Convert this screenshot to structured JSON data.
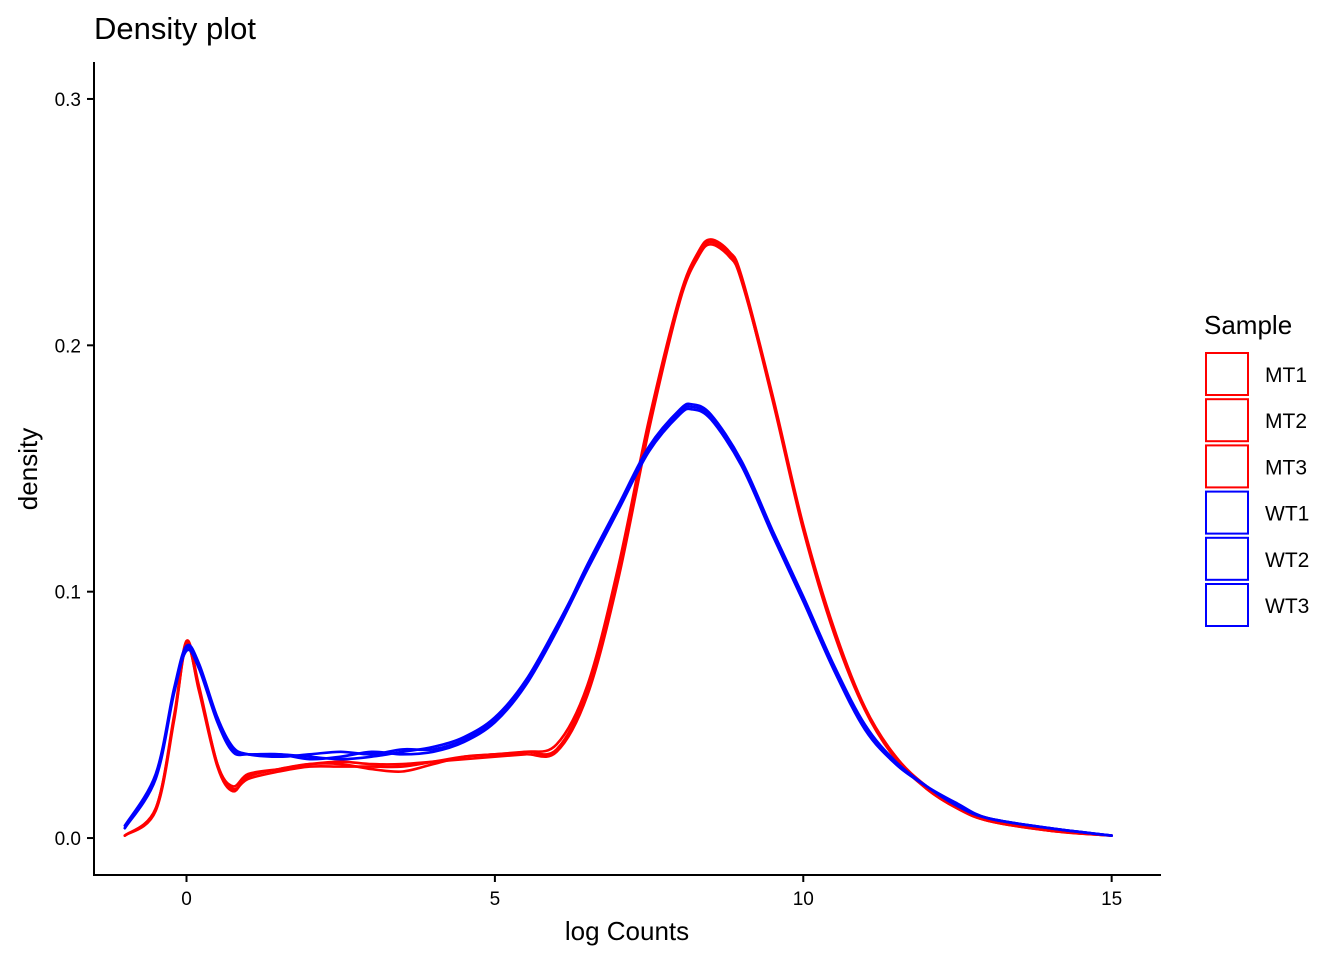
{
  "chart_data": {
    "type": "line",
    "title": "Density plot",
    "xlabel": "log Counts",
    "ylabel": "density",
    "xlim": [
      -1.5,
      15.8
    ],
    "ylim": [
      -0.015,
      0.315
    ],
    "x_ticks": [
      0,
      5,
      10,
      15
    ],
    "x_tick_labels": [
      "0",
      "5",
      "10",
      "15"
    ],
    "y_ticks": [
      0.0,
      0.1,
      0.2,
      0.3
    ],
    "y_tick_labels": [
      "0.0",
      "0.1",
      "0.2",
      "0.3"
    ],
    "grid": false,
    "legend_title": "Sample",
    "legend_position": "right",
    "series": [
      {
        "name": "MT1",
        "color": "#ff0000",
        "x": [
          -1.0,
          -0.5,
          -0.2,
          0.0,
          0.2,
          0.5,
          0.75,
          1.0,
          1.5,
          2.0,
          2.5,
          3.0,
          3.5,
          4.0,
          4.5,
          5.0,
          5.5,
          6.0,
          6.5,
          7.0,
          7.5,
          8.0,
          8.3,
          8.5,
          8.8,
          9.0,
          9.5,
          10.0,
          10.5,
          11.0,
          11.5,
          12.0,
          12.5,
          13.0,
          14.0,
          15.0
        ],
        "y": [
          0.001,
          0.012,
          0.05,
          0.08,
          0.062,
          0.03,
          0.02,
          0.024,
          0.027,
          0.029,
          0.029,
          0.029,
          0.029,
          0.031,
          0.033,
          0.034,
          0.035,
          0.038,
          0.062,
          0.11,
          0.17,
          0.22,
          0.238,
          0.243,
          0.238,
          0.228,
          0.18,
          0.127,
          0.085,
          0.053,
          0.033,
          0.021,
          0.013,
          0.008,
          0.003,
          0.001
        ]
      },
      {
        "name": "MT2",
        "color": "#ff0000",
        "x": [
          -1.0,
          -0.5,
          -0.2,
          0.0,
          0.2,
          0.5,
          0.75,
          1.0,
          1.5,
          2.0,
          2.5,
          3.0,
          3.5,
          4.0,
          4.5,
          5.0,
          5.5,
          6.0,
          6.5,
          7.0,
          7.5,
          8.0,
          8.3,
          8.5,
          8.8,
          9.0,
          9.5,
          10.0,
          10.5,
          11.0,
          11.5,
          12.0,
          12.5,
          13.0,
          14.0,
          15.0
        ],
        "y": [
          0.001,
          0.011,
          0.048,
          0.079,
          0.06,
          0.029,
          0.019,
          0.025,
          0.028,
          0.03,
          0.03,
          0.028,
          0.027,
          0.03,
          0.033,
          0.034,
          0.035,
          0.036,
          0.06,
          0.107,
          0.168,
          0.219,
          0.237,
          0.242,
          0.237,
          0.227,
          0.178,
          0.125,
          0.083,
          0.052,
          0.033,
          0.02,
          0.012,
          0.007,
          0.003,
          0.001
        ]
      },
      {
        "name": "MT3",
        "color": "#ff0000",
        "x": [
          -1.0,
          -0.5,
          -0.2,
          0.0,
          0.2,
          0.5,
          0.75,
          1.0,
          1.5,
          2.0,
          2.5,
          3.0,
          3.5,
          4.0,
          4.5,
          5.0,
          5.5,
          6.0,
          6.5,
          7.0,
          7.5,
          8.0,
          8.3,
          8.5,
          8.8,
          9.0,
          9.5,
          10.0,
          10.5,
          11.0,
          11.5,
          12.0,
          12.5,
          13.0,
          14.0,
          15.0
        ],
        "y": [
          0.001,
          0.012,
          0.049,
          0.078,
          0.061,
          0.03,
          0.021,
          0.026,
          0.028,
          0.03,
          0.031,
          0.03,
          0.03,
          0.031,
          0.032,
          0.033,
          0.034,
          0.035,
          0.058,
          0.105,
          0.166,
          0.218,
          0.236,
          0.241,
          0.236,
          0.226,
          0.179,
          0.126,
          0.084,
          0.052,
          0.032,
          0.02,
          0.012,
          0.007,
          0.003,
          0.001
        ]
      },
      {
        "name": "WT1",
        "color": "#0000ff",
        "x": [
          -1.0,
          -0.5,
          -0.2,
          0.0,
          0.2,
          0.5,
          0.75,
          1.0,
          1.5,
          2.0,
          2.5,
          3.0,
          3.5,
          4.0,
          4.5,
          5.0,
          5.5,
          6.0,
          6.5,
          7.0,
          7.5,
          8.0,
          8.2,
          8.5,
          9.0,
          9.5,
          10.0,
          10.5,
          11.0,
          11.5,
          12.0,
          12.5,
          13.0,
          14.0,
          15.0
        ],
        "y": [
          0.004,
          0.025,
          0.06,
          0.077,
          0.07,
          0.048,
          0.036,
          0.034,
          0.034,
          0.033,
          0.032,
          0.033,
          0.035,
          0.037,
          0.041,
          0.049,
          0.064,
          0.086,
          0.11,
          0.134,
          0.158,
          0.173,
          0.175,
          0.171,
          0.152,
          0.124,
          0.097,
          0.069,
          0.045,
          0.03,
          0.021,
          0.013,
          0.008,
          0.004,
          0.001
        ]
      },
      {
        "name": "WT2",
        "color": "#0000ff",
        "x": [
          -1.0,
          -0.5,
          -0.2,
          0.0,
          0.2,
          0.5,
          0.75,
          1.0,
          1.5,
          2.0,
          2.5,
          3.0,
          3.5,
          4.0,
          4.5,
          5.0,
          5.5,
          6.0,
          6.5,
          7.0,
          7.5,
          8.0,
          8.2,
          8.5,
          9.0,
          9.5,
          10.0,
          10.5,
          11.0,
          11.5,
          12.0,
          12.5,
          13.0,
          14.0,
          15.0
        ],
        "y": [
          0.005,
          0.026,
          0.061,
          0.078,
          0.071,
          0.049,
          0.037,
          0.034,
          0.033,
          0.034,
          0.035,
          0.034,
          0.036,
          0.036,
          0.04,
          0.048,
          0.063,
          0.085,
          0.111,
          0.135,
          0.159,
          0.174,
          0.176,
          0.172,
          0.153,
          0.125,
          0.098,
          0.07,
          0.046,
          0.031,
          0.021,
          0.013,
          0.008,
          0.004,
          0.001
        ]
      },
      {
        "name": "WT3",
        "color": "#0000ff",
        "x": [
          -1.0,
          -0.5,
          -0.2,
          0.0,
          0.2,
          0.5,
          0.75,
          1.0,
          1.5,
          2.0,
          2.5,
          3.0,
          3.5,
          4.0,
          4.5,
          5.0,
          5.5,
          6.0,
          6.5,
          7.0,
          7.5,
          8.0,
          8.2,
          8.5,
          9.0,
          9.5,
          10.0,
          10.5,
          11.0,
          11.5,
          12.0,
          12.5,
          13.0,
          14.0,
          15.0
        ],
        "y": [
          0.004,
          0.024,
          0.059,
          0.076,
          0.069,
          0.047,
          0.035,
          0.034,
          0.034,
          0.032,
          0.033,
          0.035,
          0.034,
          0.035,
          0.039,
          0.047,
          0.062,
          0.084,
          0.109,
          0.133,
          0.157,
          0.172,
          0.174,
          0.17,
          0.151,
          0.123,
          0.096,
          0.068,
          0.044,
          0.03,
          0.021,
          0.014,
          0.008,
          0.004,
          0.001
        ]
      }
    ]
  }
}
